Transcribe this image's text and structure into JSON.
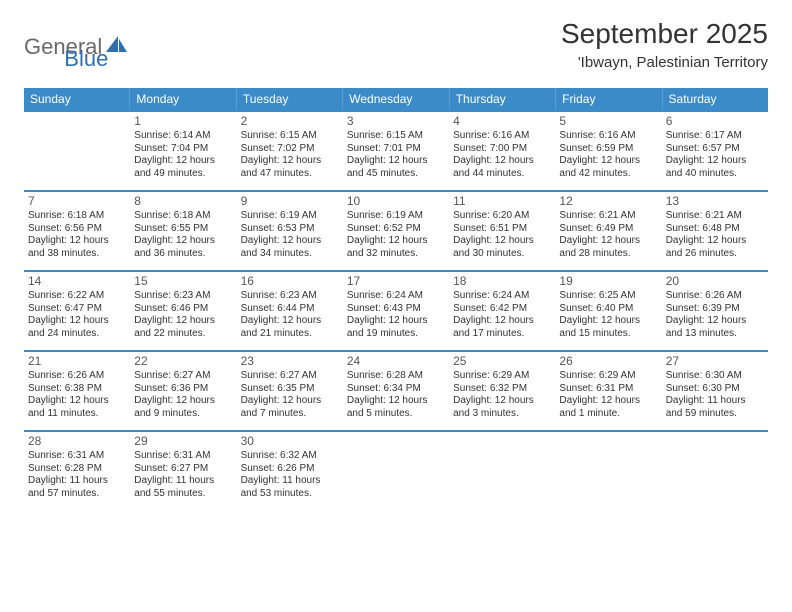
{
  "logo": {
    "text1": "General",
    "text2": "Blue"
  },
  "title": "September 2025",
  "location": "'Ibwayn, Palestinian Territory",
  "colors": {
    "header_bg": "#3b8bc9",
    "header_text": "#ffffff",
    "border": "#3b8bc9",
    "body_text": "#333333",
    "logo_gray": "#6a6a6a",
    "logo_blue": "#2f6fb0",
    "background": "#ffffff"
  },
  "days_of_week": [
    "Sunday",
    "Monday",
    "Tuesday",
    "Wednesday",
    "Thursday",
    "Friday",
    "Saturday"
  ],
  "weeks": [
    [
      {
        "num": "",
        "sunrise": "",
        "sunset": "",
        "daylight": ""
      },
      {
        "num": "1",
        "sunrise": "Sunrise: 6:14 AM",
        "sunset": "Sunset: 7:04 PM",
        "daylight": "Daylight: 12 hours and 49 minutes."
      },
      {
        "num": "2",
        "sunrise": "Sunrise: 6:15 AM",
        "sunset": "Sunset: 7:02 PM",
        "daylight": "Daylight: 12 hours and 47 minutes."
      },
      {
        "num": "3",
        "sunrise": "Sunrise: 6:15 AM",
        "sunset": "Sunset: 7:01 PM",
        "daylight": "Daylight: 12 hours and 45 minutes."
      },
      {
        "num": "4",
        "sunrise": "Sunrise: 6:16 AM",
        "sunset": "Sunset: 7:00 PM",
        "daylight": "Daylight: 12 hours and 44 minutes."
      },
      {
        "num": "5",
        "sunrise": "Sunrise: 6:16 AM",
        "sunset": "Sunset: 6:59 PM",
        "daylight": "Daylight: 12 hours and 42 minutes."
      },
      {
        "num": "6",
        "sunrise": "Sunrise: 6:17 AM",
        "sunset": "Sunset: 6:57 PM",
        "daylight": "Daylight: 12 hours and 40 minutes."
      }
    ],
    [
      {
        "num": "7",
        "sunrise": "Sunrise: 6:18 AM",
        "sunset": "Sunset: 6:56 PM",
        "daylight": "Daylight: 12 hours and 38 minutes."
      },
      {
        "num": "8",
        "sunrise": "Sunrise: 6:18 AM",
        "sunset": "Sunset: 6:55 PM",
        "daylight": "Daylight: 12 hours and 36 minutes."
      },
      {
        "num": "9",
        "sunrise": "Sunrise: 6:19 AM",
        "sunset": "Sunset: 6:53 PM",
        "daylight": "Daylight: 12 hours and 34 minutes."
      },
      {
        "num": "10",
        "sunrise": "Sunrise: 6:19 AM",
        "sunset": "Sunset: 6:52 PM",
        "daylight": "Daylight: 12 hours and 32 minutes."
      },
      {
        "num": "11",
        "sunrise": "Sunrise: 6:20 AM",
        "sunset": "Sunset: 6:51 PM",
        "daylight": "Daylight: 12 hours and 30 minutes."
      },
      {
        "num": "12",
        "sunrise": "Sunrise: 6:21 AM",
        "sunset": "Sunset: 6:49 PM",
        "daylight": "Daylight: 12 hours and 28 minutes."
      },
      {
        "num": "13",
        "sunrise": "Sunrise: 6:21 AM",
        "sunset": "Sunset: 6:48 PM",
        "daylight": "Daylight: 12 hours and 26 minutes."
      }
    ],
    [
      {
        "num": "14",
        "sunrise": "Sunrise: 6:22 AM",
        "sunset": "Sunset: 6:47 PM",
        "daylight": "Daylight: 12 hours and 24 minutes."
      },
      {
        "num": "15",
        "sunrise": "Sunrise: 6:23 AM",
        "sunset": "Sunset: 6:46 PM",
        "daylight": "Daylight: 12 hours and 22 minutes."
      },
      {
        "num": "16",
        "sunrise": "Sunrise: 6:23 AM",
        "sunset": "Sunset: 6:44 PM",
        "daylight": "Daylight: 12 hours and 21 minutes."
      },
      {
        "num": "17",
        "sunrise": "Sunrise: 6:24 AM",
        "sunset": "Sunset: 6:43 PM",
        "daylight": "Daylight: 12 hours and 19 minutes."
      },
      {
        "num": "18",
        "sunrise": "Sunrise: 6:24 AM",
        "sunset": "Sunset: 6:42 PM",
        "daylight": "Daylight: 12 hours and 17 minutes."
      },
      {
        "num": "19",
        "sunrise": "Sunrise: 6:25 AM",
        "sunset": "Sunset: 6:40 PM",
        "daylight": "Daylight: 12 hours and 15 minutes."
      },
      {
        "num": "20",
        "sunrise": "Sunrise: 6:26 AM",
        "sunset": "Sunset: 6:39 PM",
        "daylight": "Daylight: 12 hours and 13 minutes."
      }
    ],
    [
      {
        "num": "21",
        "sunrise": "Sunrise: 6:26 AM",
        "sunset": "Sunset: 6:38 PM",
        "daylight": "Daylight: 12 hours and 11 minutes."
      },
      {
        "num": "22",
        "sunrise": "Sunrise: 6:27 AM",
        "sunset": "Sunset: 6:36 PM",
        "daylight": "Daylight: 12 hours and 9 minutes."
      },
      {
        "num": "23",
        "sunrise": "Sunrise: 6:27 AM",
        "sunset": "Sunset: 6:35 PM",
        "daylight": "Daylight: 12 hours and 7 minutes."
      },
      {
        "num": "24",
        "sunrise": "Sunrise: 6:28 AM",
        "sunset": "Sunset: 6:34 PM",
        "daylight": "Daylight: 12 hours and 5 minutes."
      },
      {
        "num": "25",
        "sunrise": "Sunrise: 6:29 AM",
        "sunset": "Sunset: 6:32 PM",
        "daylight": "Daylight: 12 hours and 3 minutes."
      },
      {
        "num": "26",
        "sunrise": "Sunrise: 6:29 AM",
        "sunset": "Sunset: 6:31 PM",
        "daylight": "Daylight: 12 hours and 1 minute."
      },
      {
        "num": "27",
        "sunrise": "Sunrise: 6:30 AM",
        "sunset": "Sunset: 6:30 PM",
        "daylight": "Daylight: 11 hours and 59 minutes."
      }
    ],
    [
      {
        "num": "28",
        "sunrise": "Sunrise: 6:31 AM",
        "sunset": "Sunset: 6:28 PM",
        "daylight": "Daylight: 11 hours and 57 minutes."
      },
      {
        "num": "29",
        "sunrise": "Sunrise: 6:31 AM",
        "sunset": "Sunset: 6:27 PM",
        "daylight": "Daylight: 11 hours and 55 minutes."
      },
      {
        "num": "30",
        "sunrise": "Sunrise: 6:32 AM",
        "sunset": "Sunset: 6:26 PM",
        "daylight": "Daylight: 11 hours and 53 minutes."
      },
      {
        "num": "",
        "sunrise": "",
        "sunset": "",
        "daylight": ""
      },
      {
        "num": "",
        "sunrise": "",
        "sunset": "",
        "daylight": ""
      },
      {
        "num": "",
        "sunrise": "",
        "sunset": "",
        "daylight": ""
      },
      {
        "num": "",
        "sunrise": "",
        "sunset": "",
        "daylight": ""
      }
    ]
  ]
}
